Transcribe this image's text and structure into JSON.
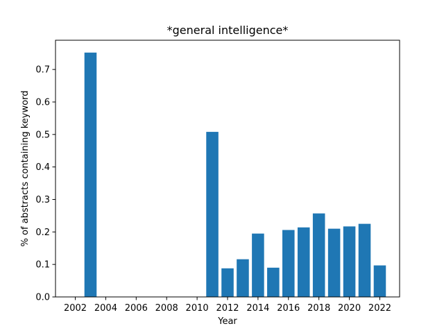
{
  "chart_data": {
    "type": "bar",
    "title": "*general intelligence*",
    "xlabel": "Year",
    "ylabel": "% of abstracts containing keyword",
    "x": [
      2003,
      2011,
      2012,
      2013,
      2014,
      2015,
      2016,
      2017,
      2018,
      2019,
      2020,
      2021,
      2022
    ],
    "values": [
      0.752,
      0.508,
      0.088,
      0.116,
      0.195,
      0.09,
      0.206,
      0.214,
      0.257,
      0.21,
      0.217,
      0.225,
      0.097
    ],
    "xlim": [
      2000.7,
      2023.3
    ],
    "ylim": [
      0,
      0.79
    ],
    "xticks": [
      2002,
      2004,
      2006,
      2008,
      2010,
      2012,
      2014,
      2016,
      2018,
      2020,
      2022
    ],
    "yticks": [
      0.0,
      0.1,
      0.2,
      0.3,
      0.4,
      0.5,
      0.6,
      0.7
    ],
    "ytick_labels": [
      "0.0",
      "0.1",
      "0.2",
      "0.3",
      "0.4",
      "0.5",
      "0.6",
      "0.7"
    ],
    "bar_color": "#1f77b4",
    "grid": false,
    "legend": "none"
  }
}
